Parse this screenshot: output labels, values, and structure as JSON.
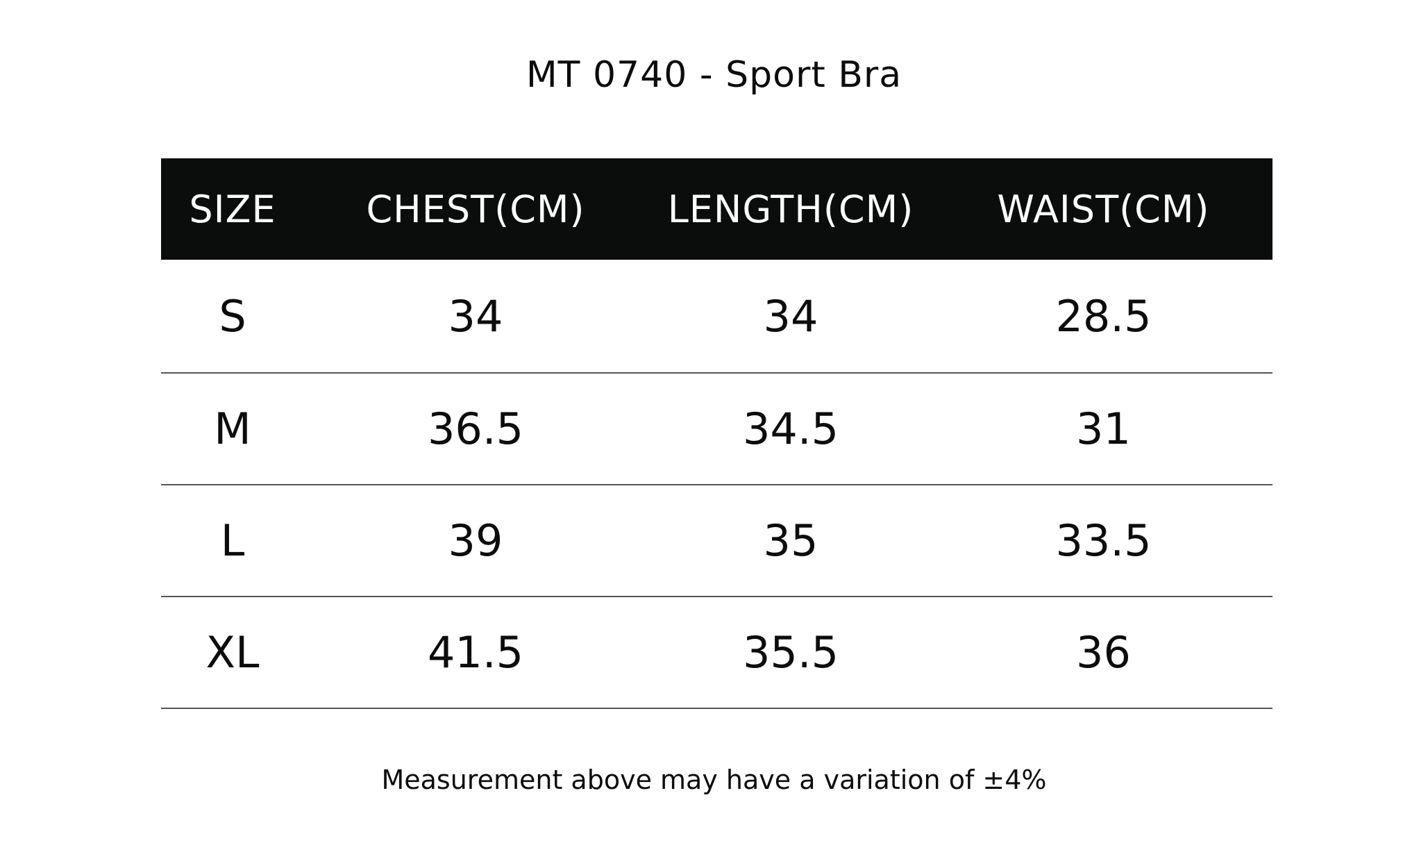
{
  "title": "MT 0740 - Sport Bra",
  "table": {
    "headers": [
      "SIZE",
      "CHEST(CM)",
      "LENGTH(CM)",
      "WAIST(CM)"
    ],
    "rows": [
      [
        "S",
        "34",
        "34",
        "28.5"
      ],
      [
        "M",
        "36.5",
        "34.5",
        "31"
      ],
      [
        "L",
        "39",
        "35",
        "33.5"
      ],
      [
        "XL",
        "41.5",
        "35.5",
        "36"
      ]
    ]
  },
  "note": "Measurement above may have a variation of ±4%"
}
